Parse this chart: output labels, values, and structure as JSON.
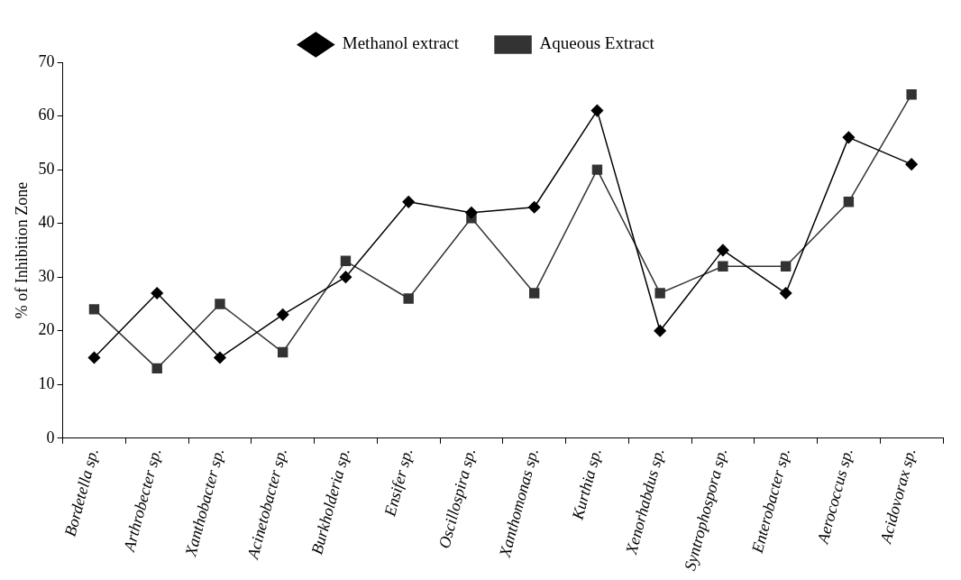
{
  "chart_data": {
    "type": "line",
    "ylabel": "% of Inhibition Zone",
    "categories": [
      "Bordetella sp.",
      "Arthrobecter sp.",
      "Xanthobacter sp.",
      "Acinetobacter sp.",
      "Burkholderia sp.",
      "Ensifer sp.",
      "Oscillospira sp.",
      "Xanthomonas sp.",
      "Kurthia sp.",
      "Xenorhabdus sp.",
      "Syntrophospora sp.",
      "Enterobacter sp.",
      "Aerococcus sp.",
      "Acidovorax sp."
    ],
    "series": [
      {
        "name": "Methanol extract",
        "color": "#000000",
        "marker": "diamond",
        "values": [
          15,
          27,
          15,
          23,
          30,
          44,
          42,
          43,
          61,
          20,
          35,
          27,
          56,
          51
        ]
      },
      {
        "name": "Aqueous Extract",
        "color": "#333333",
        "marker": "square",
        "values": [
          24,
          13,
          25,
          16,
          33,
          26,
          41,
          27,
          50,
          27,
          32,
          32,
          44,
          64
        ]
      }
    ],
    "ylim": [
      0,
      70
    ],
    "yticks": [
      0,
      10,
      20,
      30,
      40,
      50,
      60,
      70
    ],
    "grid": false,
    "legend": "top",
    "line_style": "solid"
  }
}
